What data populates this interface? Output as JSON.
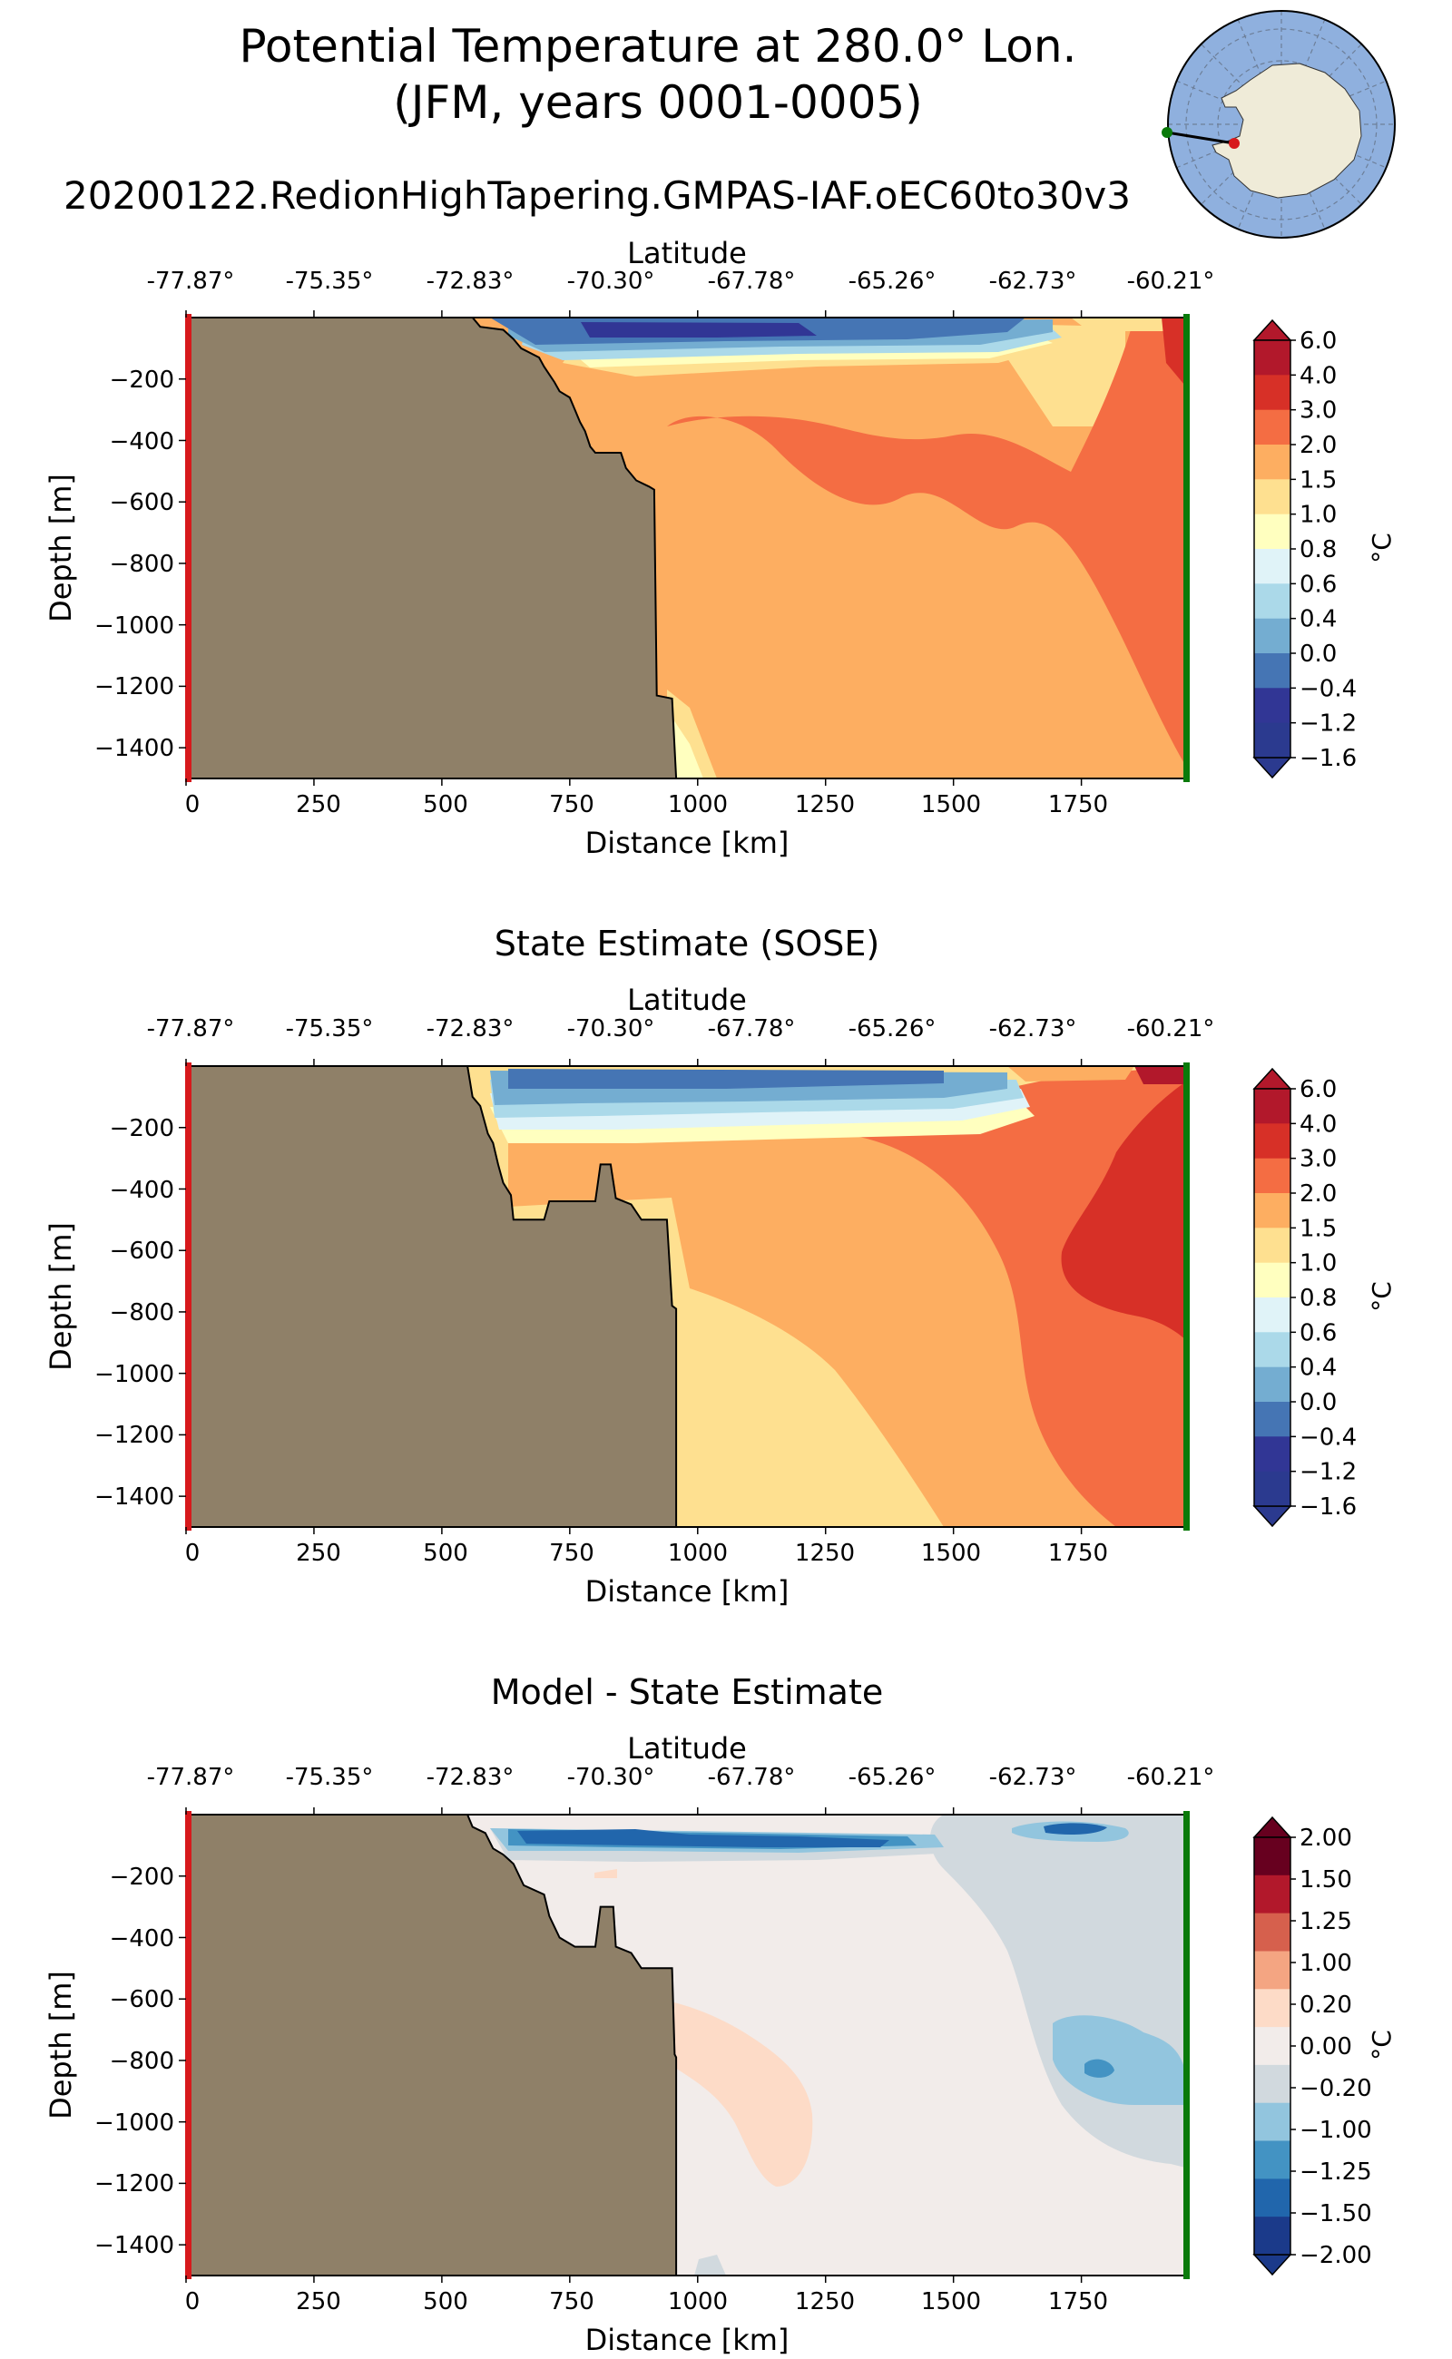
{
  "figure": {
    "title_line1": "Potential Temperature at 280.0° Lon.",
    "title_line2": "(JFM, years 0001-0005)",
    "run_name": "20200122.RedionHighTapering.GMPAS-IAF.oEC60to30v3"
  },
  "colors": {
    "land": "#8f8068",
    "start_marker": "#d7191c",
    "end_marker": "#0a7a0a",
    "globe_ocean": "#8fb0de",
    "globe_land": "#efebd8"
  },
  "chart_data": [
    {
      "type": "filled-contour-section",
      "title": "",
      "xlabel": "Distance [km]",
      "ylabel": "Depth [m]",
      "top_xlabel": "Latitude",
      "x_ticks": [
        "0",
        "250",
        "500",
        "750",
        "1000",
        "1250",
        "1500",
        "1750"
      ],
      "x_tick_values": [
        0,
        250,
        500,
        750,
        1000,
        1250,
        1500,
        1750
      ],
      "y_ticks": [
        "−200",
        "−400",
        "−600",
        "−800",
        "−1000",
        "−1200",
        "−1400"
      ],
      "y_tick_values": [
        -200,
        -400,
        -600,
        -800,
        -1000,
        -1200,
        -1400
      ],
      "lat_ticks": [
        "-77.87°",
        "-75.35°",
        "-72.83°",
        "-70.30°",
        "-67.78°",
        "-65.26°",
        "-62.73°",
        "-60.21°"
      ],
      "xlim": [
        0,
        1960
      ],
      "ylim": [
        -1500,
        0
      ],
      "colorbar_label": "°C",
      "colorbar_ticks": [
        "6.0",
        "4.0",
        "3.0",
        "2.0",
        "1.5",
        "1.0",
        "0.8",
        "0.6",
        "0.4",
        "0.0",
        "−0.4",
        "−1.2",
        "−1.6"
      ],
      "colorbar_colors": [
        "#b2182b",
        "#d73027",
        "#f46d43",
        "#fdae61",
        "#fee090",
        "#ffffbf",
        "#e0f3f8",
        "#abd9e9",
        "#74add1",
        "#4575b4",
        "#313695",
        "#2b3a8f"
      ],
      "bathymetry": [
        [
          560,
          0
        ],
        [
          575,
          -30
        ],
        [
          620,
          -40
        ],
        [
          640,
          -70
        ],
        [
          655,
          -100
        ],
        [
          690,
          -130
        ],
        [
          700,
          -160
        ],
        [
          720,
          -210
        ],
        [
          730,
          -240
        ],
        [
          750,
          -260
        ],
        [
          760,
          -300
        ],
        [
          770,
          -340
        ],
        [
          780,
          -370
        ],
        [
          790,
          -420
        ],
        [
          800,
          -440
        ],
        [
          820,
          -440
        ],
        [
          850,
          -440
        ],
        [
          860,
          -490
        ],
        [
          880,
          -530
        ],
        [
          905,
          -550
        ],
        [
          915,
          -560
        ],
        [
          920,
          -1230
        ],
        [
          950,
          -1240
        ],
        [
          958,
          -1500
        ]
      ]
    },
    {
      "type": "filled-contour-section",
      "title": "State Estimate (SOSE)",
      "xlabel": "Distance [km]",
      "ylabel": "Depth [m]",
      "top_xlabel": "Latitude",
      "x_ticks": [
        "0",
        "250",
        "500",
        "750",
        "1000",
        "1250",
        "1500",
        "1750"
      ],
      "x_tick_values": [
        0,
        250,
        500,
        750,
        1000,
        1250,
        1500,
        1750
      ],
      "y_ticks": [
        "−200",
        "−400",
        "−600",
        "−800",
        "−1000",
        "−1200",
        "−1400"
      ],
      "y_tick_values": [
        -200,
        -400,
        -600,
        -800,
        -1000,
        -1200,
        -1400
      ],
      "lat_ticks": [
        "-77.87°",
        "-75.35°",
        "-72.83°",
        "-70.30°",
        "-67.78°",
        "-65.26°",
        "-62.73°",
        "-60.21°"
      ],
      "xlim": [
        0,
        1960
      ],
      "ylim": [
        -1500,
        0
      ],
      "colorbar_label": "°C",
      "colorbar_ticks": [
        "6.0",
        "4.0",
        "3.0",
        "2.0",
        "1.5",
        "1.0",
        "0.8",
        "0.6",
        "0.4",
        "0.0",
        "−0.4",
        "−1.2",
        "−1.6"
      ],
      "colorbar_colors": [
        "#b2182b",
        "#d73027",
        "#f46d43",
        "#fdae61",
        "#fee090",
        "#ffffbf",
        "#e0f3f8",
        "#abd9e9",
        "#74add1",
        "#4575b4",
        "#313695",
        "#2b3a8f"
      ],
      "bathymetry": [
        [
          550,
          0
        ],
        [
          560,
          -100
        ],
        [
          575,
          -130
        ],
        [
          590,
          -220
        ],
        [
          600,
          -250
        ],
        [
          610,
          -320
        ],
        [
          620,
          -380
        ],
        [
          635,
          -420
        ],
        [
          640,
          -500
        ],
        [
          700,
          -500
        ],
        [
          710,
          -440
        ],
        [
          800,
          -440
        ],
        [
          810,
          -320
        ],
        [
          830,
          -320
        ],
        [
          840,
          -430
        ],
        [
          870,
          -450
        ],
        [
          890,
          -500
        ],
        [
          940,
          -500
        ],
        [
          950,
          -780
        ],
        [
          958,
          -790
        ],
        [
          958,
          -1500
        ]
      ]
    },
    {
      "type": "filled-contour-section",
      "title": "Model - State Estimate",
      "xlabel": "Distance [km]",
      "ylabel": "Depth [m]",
      "top_xlabel": "Latitude",
      "x_ticks": [
        "0",
        "250",
        "500",
        "750",
        "1000",
        "1250",
        "1500",
        "1750"
      ],
      "x_tick_values": [
        0,
        250,
        500,
        750,
        1000,
        1250,
        1500,
        1750
      ],
      "y_ticks": [
        "−200",
        "−400",
        "−600",
        "−800",
        "−1000",
        "−1200",
        "−1400"
      ],
      "y_tick_values": [
        -200,
        -400,
        -600,
        -800,
        -1000,
        -1200,
        -1400
      ],
      "lat_ticks": [
        "-77.87°",
        "-75.35°",
        "-72.83°",
        "-70.30°",
        "-67.78°",
        "-65.26°",
        "-62.73°",
        "-60.21°"
      ],
      "xlim": [
        0,
        1960
      ],
      "ylim": [
        -1500,
        0
      ],
      "colorbar_label": "°C",
      "colorbar_ticks": [
        "2.00",
        "1.50",
        "1.25",
        "1.00",
        "0.20",
        "0.00",
        "−0.20",
        "−1.00",
        "−1.25",
        "−1.50",
        "−2.00"
      ],
      "colorbar_colors": [
        "#67001f",
        "#b2182b",
        "#d6604d",
        "#f4a582",
        "#fddbc7",
        "#f2ecea",
        "#d1d9de",
        "#92c5de",
        "#4393c3",
        "#2166ac",
        "#1b3a8a"
      ],
      "bathymetry": [
        [
          550,
          0
        ],
        [
          560,
          -40
        ],
        [
          585,
          -60
        ],
        [
          600,
          -110
        ],
        [
          620,
          -130
        ],
        [
          640,
          -160
        ],
        [
          660,
          -230
        ],
        [
          700,
          -260
        ],
        [
          710,
          -330
        ],
        [
          730,
          -400
        ],
        [
          760,
          -430
        ],
        [
          800,
          -430
        ],
        [
          810,
          -300
        ],
        [
          835,
          -300
        ],
        [
          840,
          -430
        ],
        [
          870,
          -450
        ],
        [
          890,
          -500
        ],
        [
          950,
          -500
        ],
        [
          955,
          -780
        ],
        [
          958,
          -790
        ],
        [
          958,
          -1500
        ]
      ]
    }
  ]
}
